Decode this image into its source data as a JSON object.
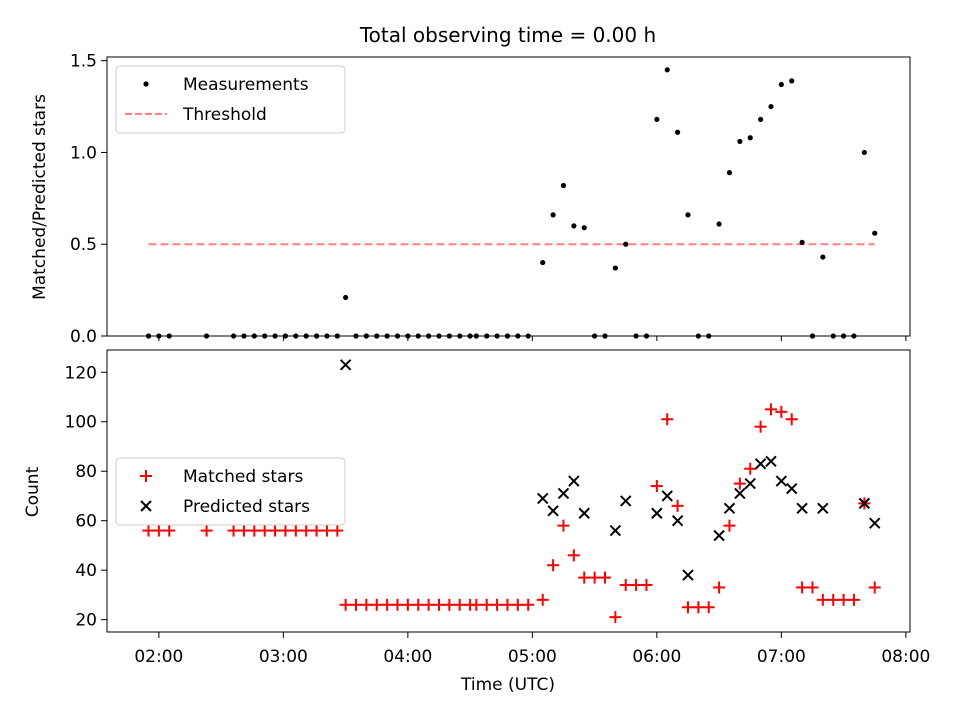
{
  "chart_data": [
    {
      "type": "scatter",
      "title": "Total observing time = 0.00 h",
      "ylabel": "Matched/Predicted stars",
      "ylim": [
        0,
        1.52
      ],
      "yticks": [
        0.0,
        0.5,
        1.0,
        1.5
      ],
      "ytick_labels": [
        "0.0",
        "0.5",
        "1.0",
        "1.5"
      ],
      "legend_position": "upper-left",
      "series": [
        {
          "name": "Measurements",
          "marker": "dot",
          "color": "#000000",
          "points": [
            [
              "01:55",
              0
            ],
            [
              "02:00",
              0
            ],
            [
              "02:05",
              0
            ],
            [
              "02:23",
              0
            ],
            [
              "02:36",
              0
            ],
            [
              "02:41",
              0
            ],
            [
              "02:46",
              0
            ],
            [
              "02:51",
              0
            ],
            [
              "02:56",
              0
            ],
            [
              "03:01",
              0
            ],
            [
              "03:06",
              0
            ],
            [
              "03:11",
              0
            ],
            [
              "03:16",
              0
            ],
            [
              "03:21",
              0
            ],
            [
              "03:26",
              0
            ],
            [
              "03:30",
              0.21
            ],
            [
              "03:35",
              0
            ],
            [
              "03:40",
              0
            ],
            [
              "03:45",
              0
            ],
            [
              "03:50",
              0
            ],
            [
              "03:55",
              0
            ],
            [
              "04:00",
              0
            ],
            [
              "04:05",
              0
            ],
            [
              "04:10",
              0
            ],
            [
              "04:15",
              0
            ],
            [
              "04:20",
              0
            ],
            [
              "04:25",
              0
            ],
            [
              "04:30",
              0
            ],
            [
              "04:33",
              0
            ],
            [
              "04:38",
              0
            ],
            [
              "04:43",
              0
            ],
            [
              "04:48",
              0
            ],
            [
              "04:53",
              0
            ],
            [
              "04:58",
              0
            ],
            [
              "05:05",
              0.4
            ],
            [
              "05:10",
              0.66
            ],
            [
              "05:15",
              0.82
            ],
            [
              "05:20",
              0.6
            ],
            [
              "05:25",
              0.59
            ],
            [
              "05:30",
              0
            ],
            [
              "05:35",
              0
            ],
            [
              "05:40",
              0.37
            ],
            [
              "05:45",
              0.5
            ],
            [
              "05:50",
              0
            ],
            [
              "05:55",
              0
            ],
            [
              "06:00",
              1.18
            ],
            [
              "06:05",
              1.45
            ],
            [
              "06:10",
              1.11
            ],
            [
              "06:15",
              0.66
            ],
            [
              "06:20",
              0
            ],
            [
              "06:25",
              0
            ],
            [
              "06:30",
              0.61
            ],
            [
              "06:35",
              0.89
            ],
            [
              "06:40",
              1.06
            ],
            [
              "06:45",
              1.08
            ],
            [
              "06:50",
              1.18
            ],
            [
              "06:55",
              1.25
            ],
            [
              "07:00",
              1.37
            ],
            [
              "07:05",
              1.39
            ],
            [
              "07:10",
              0.51
            ],
            [
              "07:15",
              0
            ],
            [
              "07:20",
              0.43
            ],
            [
              "07:25",
              0
            ],
            [
              "07:30",
              0
            ],
            [
              "07:35",
              0
            ],
            [
              "07:40",
              1.0
            ],
            [
              "07:45",
              0.56
            ]
          ]
        },
        {
          "name": "Threshold",
          "line_style": "dashed",
          "color": "#ff7f7f",
          "x_range": [
            "01:55",
            "07:45"
          ],
          "y": 0.5
        }
      ]
    },
    {
      "type": "scatter",
      "xlabel": "Time (UTC)",
      "ylabel": "Count",
      "ylim": [
        15,
        129
      ],
      "yticks": [
        20,
        40,
        60,
        80,
        100,
        120
      ],
      "ytick_labels": [
        "20",
        "40",
        "60",
        "80",
        "100",
        "120"
      ],
      "xlim": [
        "01:35",
        "08:02"
      ],
      "xticks": [
        "02:00",
        "03:00",
        "04:00",
        "05:00",
        "06:00",
        "07:00",
        "08:00"
      ],
      "xtick_labels": [
        "02:00",
        "03:00",
        "04:00",
        "05:00",
        "06:00",
        "07:00",
        "08:00"
      ],
      "legend_position": "center-left",
      "series": [
        {
          "name": "Matched stars",
          "marker": "plus",
          "color": "#ff0000",
          "points": [
            [
              "01:55",
              56
            ],
            [
              "02:00",
              56
            ],
            [
              "02:05",
              56
            ],
            [
              "02:23",
              56
            ],
            [
              "02:36",
              56
            ],
            [
              "02:41",
              56
            ],
            [
              "02:46",
              56
            ],
            [
              "02:51",
              56
            ],
            [
              "02:56",
              56
            ],
            [
              "03:01",
              56
            ],
            [
              "03:06",
              56
            ],
            [
              "03:11",
              56
            ],
            [
              "03:16",
              56
            ],
            [
              "03:21",
              56
            ],
            [
              "03:26",
              56
            ],
            [
              "03:30",
              26
            ],
            [
              "03:35",
              26
            ],
            [
              "03:40",
              26
            ],
            [
              "03:45",
              26
            ],
            [
              "03:50",
              26
            ],
            [
              "03:55",
              26
            ],
            [
              "04:00",
              26
            ],
            [
              "04:05",
              26
            ],
            [
              "04:10",
              26
            ],
            [
              "04:15",
              26
            ],
            [
              "04:20",
              26
            ],
            [
              "04:25",
              26
            ],
            [
              "04:30",
              26
            ],
            [
              "04:33",
              26
            ],
            [
              "04:38",
              26
            ],
            [
              "04:43",
              26
            ],
            [
              "04:48",
              26
            ],
            [
              "04:53",
              26
            ],
            [
              "04:58",
              26
            ],
            [
              "05:05",
              28
            ],
            [
              "05:10",
              42
            ],
            [
              "05:15",
              58
            ],
            [
              "05:20",
              46
            ],
            [
              "05:25",
              37
            ],
            [
              "05:30",
              37
            ],
            [
              "05:35",
              37
            ],
            [
              "05:40",
              21
            ],
            [
              "05:45",
              34
            ],
            [
              "05:50",
              34
            ],
            [
              "05:55",
              34
            ],
            [
              "06:00",
              74
            ],
            [
              "06:05",
              101
            ],
            [
              "06:10",
              66
            ],
            [
              "06:15",
              25
            ],
            [
              "06:20",
              25
            ],
            [
              "06:25",
              25
            ],
            [
              "06:30",
              33
            ],
            [
              "06:35",
              58
            ],
            [
              "06:40",
              75
            ],
            [
              "06:45",
              81
            ],
            [
              "06:50",
              98
            ],
            [
              "06:55",
              105
            ],
            [
              "07:00",
              104
            ],
            [
              "07:05",
              101
            ],
            [
              "07:10",
              33
            ],
            [
              "07:15",
              33
            ],
            [
              "07:20",
              28
            ],
            [
              "07:25",
              28
            ],
            [
              "07:30",
              28
            ],
            [
              "07:35",
              28
            ],
            [
              "07:40",
              67
            ],
            [
              "07:45",
              33
            ]
          ]
        },
        {
          "name": "Predicted stars",
          "marker": "x",
          "color": "#000000",
          "points": [
            [
              "03:30",
              123
            ],
            [
              "05:05",
              69
            ],
            [
              "05:10",
              64
            ],
            [
              "05:15",
              71
            ],
            [
              "05:20",
              76
            ],
            [
              "05:25",
              63
            ],
            [
              "05:40",
              56
            ],
            [
              "05:45",
              68
            ],
            [
              "06:00",
              63
            ],
            [
              "06:05",
              70
            ],
            [
              "06:10",
              60
            ],
            [
              "06:15",
              38
            ],
            [
              "06:30",
              54
            ],
            [
              "06:35",
              65
            ],
            [
              "06:40",
              71
            ],
            [
              "06:45",
              75
            ],
            [
              "06:50",
              83
            ],
            [
              "06:55",
              84
            ],
            [
              "07:00",
              76
            ],
            [
              "07:05",
              73
            ],
            [
              "07:10",
              65
            ],
            [
              "07:20",
              65
            ],
            [
              "07:40",
              67
            ],
            [
              "07:45",
              59
            ]
          ]
        }
      ]
    }
  ]
}
